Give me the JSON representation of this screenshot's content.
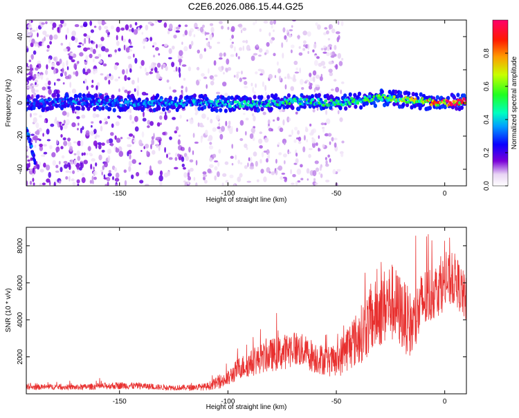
{
  "title": "C2E6.2026.086.15.44.G25",
  "chart_data": [
    {
      "type": "heatmap",
      "xlabel": "Height of straight line (km)",
      "ylabel": "Frequency (Hz)",
      "xlim": [
        -193,
        10
      ],
      "ylim": [
        -50,
        50
      ],
      "xticks": [
        -150,
        -100,
        -50,
        0
      ],
      "yticks": [
        40,
        20,
        0,
        -20,
        -40
      ],
      "colorbar": {
        "label": "Normalized spectral amplitude",
        "range": [
          0,
          1
        ],
        "ticks": [
          0.0,
          0.2,
          0.4,
          0.6,
          0.8
        ]
      },
      "ridge": [
        {
          "x": -190,
          "y": 0,
          "amp": 0.3
        },
        {
          "x": -170,
          "y": 1,
          "amp": 0.35
        },
        {
          "x": -150,
          "y": 0,
          "amp": 0.35
        },
        {
          "x": -130,
          "y": 0,
          "amp": 0.35
        },
        {
          "x": -110,
          "y": 0,
          "amp": 0.4
        },
        {
          "x": -90,
          "y": -1,
          "amp": 0.45
        },
        {
          "x": -70,
          "y": 1,
          "amp": 0.5
        },
        {
          "x": -50,
          "y": 0,
          "amp": 0.5
        },
        {
          "x": -30,
          "y": 3,
          "amp": 0.55
        },
        {
          "x": -20,
          "y": 2,
          "amp": 0.65
        },
        {
          "x": -10,
          "y": 1,
          "amp": 0.75
        },
        {
          "x": 0,
          "y": 0,
          "amp": 0.95
        },
        {
          "x": 8,
          "y": 1,
          "amp": 0.95
        }
      ],
      "branch": [
        {
          "x": -193,
          "y": -15
        },
        {
          "x": -191,
          "y": -28
        },
        {
          "x": -189,
          "y": -35
        }
      ],
      "grid": false
    },
    {
      "type": "line",
      "xlabel": "Height of straight line (km)",
      "ylabel": "SNR (10 * v/v)",
      "xlim": [
        -193,
        10
      ],
      "ylim": [
        0,
        9000
      ],
      "xticks": [
        -150,
        -100,
        -50,
        0
      ],
      "yticks": [
        2000,
        4000,
        6000,
        8000
      ],
      "color": "#e8302f",
      "x": [
        -193,
        -180,
        -170,
        -160,
        -150,
        -140,
        -130,
        -120,
        -110,
        -100,
        -95,
        -90,
        -85,
        -80,
        -75,
        -70,
        -65,
        -60,
        -55,
        -50,
        -45,
        -40,
        -35,
        -30,
        -25,
        -20,
        -15,
        -10,
        -5,
        0,
        5,
        10
      ],
      "y": [
        350,
        380,
        350,
        400,
        450,
        420,
        350,
        330,
        380,
        800,
        1400,
        1600,
        1900,
        2100,
        2200,
        2500,
        2300,
        2000,
        1800,
        1700,
        2500,
        3000,
        3800,
        4500,
        5000,
        4400,
        3600,
        5000,
        5500,
        6000,
        6200,
        5000
      ],
      "spread": [
        150,
        150,
        150,
        180,
        200,
        180,
        150,
        150,
        200,
        450,
        600,
        700,
        800,
        900,
        950,
        1000,
        900,
        900,
        800,
        900,
        1300,
        1500,
        1800,
        2000,
        2200,
        2000,
        1800,
        1800,
        1500,
        1500,
        1400,
        1300
      ],
      "grid": false
    }
  ]
}
